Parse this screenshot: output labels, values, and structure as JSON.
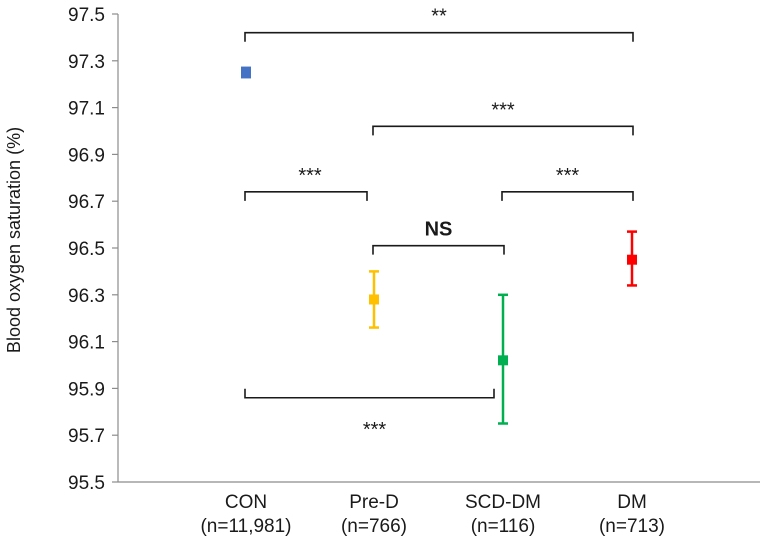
{
  "chart_data": {
    "type": "scatter",
    "title": "",
    "xlabel": "",
    "ylabel": "Blood oxygen saturation (%)",
    "ylim": [
      95.5,
      97.5
    ],
    "yticks": [
      "95.5",
      "95.7",
      "95.9",
      "96.1",
      "96.3",
      "96.5",
      "96.7",
      "96.9",
      "97.1",
      "97.3",
      "97.5"
    ],
    "grid": false,
    "points": [
      {
        "name": "CON",
        "n_label": "(n=11,981)",
        "mean": 97.25,
        "err_low": 97.23,
        "err_high": 97.27,
        "color": "#4472C4"
      },
      {
        "name": "Pre-D",
        "n_label": "(n=766)",
        "mean": 96.28,
        "err_low": 96.16,
        "err_high": 96.4,
        "color": "#FFC000"
      },
      {
        "name": "SCD-DM",
        "n_label": "(n=116)",
        "mean": 96.02,
        "err_low": 95.75,
        "err_high": 96.3,
        "color": "#00B050"
      },
      {
        "name": "DM",
        "n_label": "(n=713)",
        "mean": 96.45,
        "err_low": 96.34,
        "err_high": 96.57,
        "color": "#FF0000"
      }
    ],
    "comparisons": [
      {
        "from": 0,
        "to": 3,
        "y": 97.42,
        "label": "**",
        "bold": false,
        "label_side": "above"
      },
      {
        "from": 1,
        "to": 3,
        "y": 97.02,
        "label": "***",
        "bold": false,
        "label_side": "above"
      },
      {
        "from": 0,
        "to": 1,
        "y": 96.74,
        "label": "***",
        "bold": false,
        "label_side": "above"
      },
      {
        "from": 2,
        "to": 3,
        "y": 96.74,
        "label": "***",
        "bold": false,
        "label_side": "above"
      },
      {
        "from": 1,
        "to": 2,
        "y": 96.51,
        "label": "NS",
        "bold": true,
        "label_side": "above"
      },
      {
        "from": 0,
        "to": 2,
        "y": 95.86,
        "label": "***",
        "bold": false,
        "label_side": "below"
      }
    ]
  }
}
